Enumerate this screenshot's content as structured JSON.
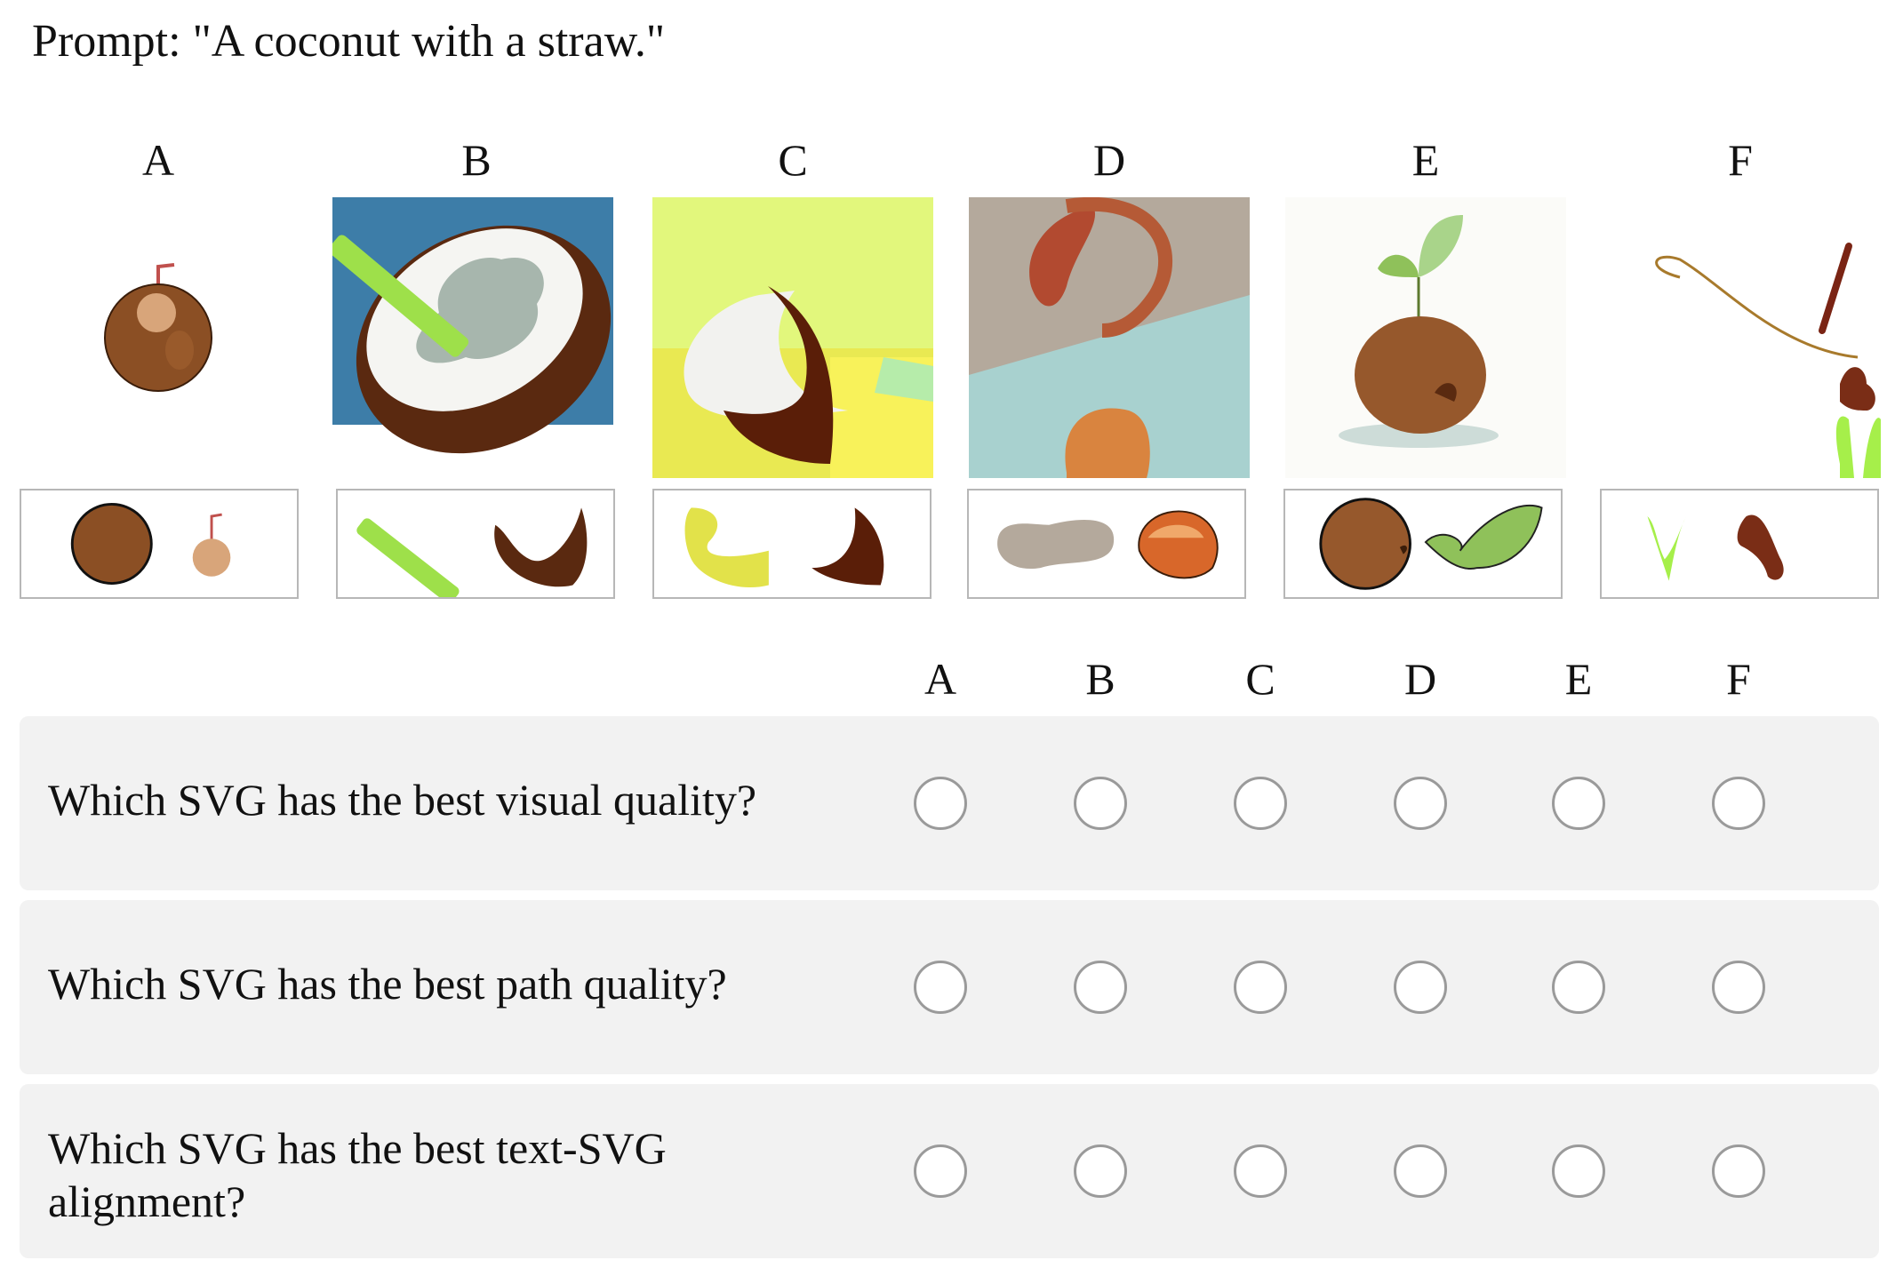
{
  "prompt": "Prompt: \"A coconut with a straw.\"",
  "columns": [
    "A",
    "B",
    "C",
    "D",
    "E",
    "F"
  ],
  "images": [
    {
      "label": "A",
      "icon": "coconut-with-straw-icon"
    },
    {
      "label": "B",
      "icon": "halved-coconut-icon"
    },
    {
      "label": "C",
      "icon": "abstract-coconut-shell-icon"
    },
    {
      "label": "D",
      "icon": "abstract-shapes-icon"
    },
    {
      "label": "E",
      "icon": "sprouting-coconut-icon"
    },
    {
      "label": "F",
      "icon": "sparse-strokes-icon"
    }
  ],
  "questions": [
    {
      "text": "Which SVG has the best visual quality?",
      "selected": null
    },
    {
      "text": "Which SVG has the best path quality?",
      "selected": null
    },
    {
      "text": "Which SVG has the best text-SVG alignment?",
      "selected": null
    }
  ],
  "colors": {
    "row_bg": "#f2f2f2",
    "radio_border": "#9a9a9a",
    "parts_border": "#b7b7b7"
  }
}
